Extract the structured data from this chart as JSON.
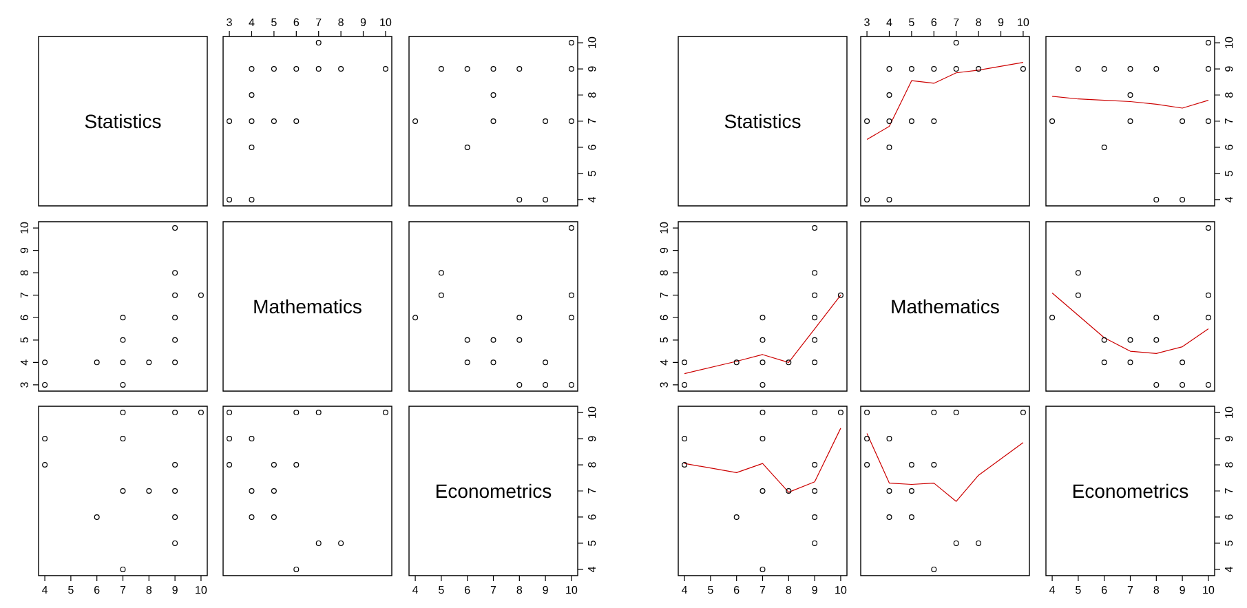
{
  "chart_data": [
    {
      "type": "other",
      "title": "Statistics"
    },
    {
      "type": "scatter",
      "x": [
        3,
        3,
        4,
        4,
        4,
        4,
        4,
        5,
        5,
        6,
        6,
        7,
        7,
        8,
        10
      ],
      "values": [
        7,
        4,
        9,
        8,
        7,
        6,
        4,
        9,
        7,
        9,
        7,
        10,
        9,
        9,
        9
      ],
      "color": "#000000",
      "marker": "circle",
      "xlim": [
        2.72,
        10.28
      ],
      "ylim": [
        3.76,
        10.24
      ],
      "xticks": [
        3,
        4,
        5,
        6,
        7,
        8,
        9,
        10
      ],
      "tick_labels": "x"
    },
    {
      "type": "scatter",
      "x": [
        4,
        5,
        6,
        6,
        7,
        7,
        7,
        8,
        8,
        9,
        9,
        10,
        10,
        10
      ],
      "values": [
        7,
        9,
        9,
        6,
        9,
        8,
        7,
        9,
        4,
        7,
        4,
        10,
        9,
        7
      ],
      "color": "#000000",
      "marker": "circle",
      "xlim": [
        3.76,
        10.24
      ],
      "ylim": [
        3.76,
        10.24
      ],
      "yticks": [
        4,
        5,
        6,
        7,
        8,
        9,
        10
      ],
      "tick_labels": "y"
    },
    {
      "type": "scatter",
      "x": [
        4,
        4,
        6,
        7,
        7,
        7,
        7,
        8,
        9,
        9,
        9,
        9,
        9,
        9,
        10
      ],
      "values": [
        4,
        3,
        4,
        6,
        5,
        4,
        3,
        4,
        10,
        8,
        7,
        6,
        5,
        4,
        7
      ],
      "color": "#000000",
      "marker": "circle",
      "xlim": [
        3.76,
        10.24
      ],
      "ylim": [
        2.72,
        10.28
      ],
      "yticks": [
        3,
        4,
        5,
        6,
        7,
        8,
        9,
        10
      ],
      "tick_labels": "y"
    },
    {
      "type": "other",
      "title": "Mathematics"
    },
    {
      "type": "scatter",
      "x": [
        4,
        5,
        5,
        6,
        6,
        7,
        7,
        8,
        8,
        8,
        9,
        9,
        10,
        10,
        10,
        10
      ],
      "values": [
        6,
        8,
        7,
        5,
        4,
        5,
        4,
        6,
        5,
        3,
        4,
        3,
        10,
        7,
        6,
        3
      ],
      "color": "#000000",
      "marker": "circle",
      "xlim": [
        3.76,
        10.24
      ],
      "ylim": [
        2.72,
        10.28
      ],
      "tick_labels": false
    },
    {
      "type": "scatter",
      "x": [
        4,
        4,
        6,
        7,
        7,
        7,
        7,
        8,
        9,
        9,
        9,
        9,
        9,
        10
      ],
      "values": [
        9,
        8,
        6,
        10,
        9,
        7,
        4,
        7,
        10,
        8,
        7,
        6,
        5,
        10
      ],
      "color": "#000000",
      "marker": "circle",
      "xlim": [
        3.76,
        10.24
      ],
      "ylim": [
        3.76,
        10.24
      ],
      "xticks": [
        4,
        5,
        6,
        7,
        8,
        9,
        10
      ],
      "tick_labels": "x"
    },
    {
      "type": "scatter",
      "x": [
        3,
        3,
        3,
        4,
        4,
        4,
        5,
        5,
        5,
        6,
        6,
        6,
        7,
        7,
        8,
        10
      ],
      "values": [
        10,
        9,
        8,
        9,
        7,
        6,
        8,
        7,
        6,
        10,
        8,
        4,
        10,
        5,
        5,
        10
      ],
      "color": "#000000",
      "marker": "circle",
      "xlim": [
        2.72,
        10.28
      ],
      "ylim": [
        3.76,
        10.24
      ],
      "tick_labels": false
    },
    {
      "type": "scatter",
      "title": "Econometrics",
      "xlim": [
        3.76,
        10.24
      ],
      "ylim": [
        3.76,
        10.24
      ],
      "xticks": [
        4,
        5,
        6,
        7,
        8,
        9,
        10
      ],
      "yticks": [
        4,
        5,
        6,
        7,
        8,
        9,
        10
      ]
    },
    {
      "type": "other",
      "title": "Statistics"
    },
    {
      "type": "scatter",
      "xlim": [
        2.72,
        10.28
      ],
      "ylim": [
        3.76,
        10.24
      ],
      "xticks": [
        3,
        4,
        5,
        6,
        7,
        8,
        9,
        10
      ],
      "tick_labels": "x",
      "series": [
        {
          "type": "scatter",
          "marker": "circle",
          "color": "#000000",
          "x": [
            3,
            3,
            4,
            4,
            4,
            4,
            4,
            5,
            5,
            6,
            6,
            7,
            7,
            8,
            10
          ],
          "values": [
            7,
            4,
            9,
            8,
            7,
            6,
            4,
            9,
            7,
            9,
            7,
            10,
            9,
            9,
            9
          ]
        },
        {
          "type": "line",
          "color": "#cc0000",
          "x": [
            3,
            4,
            5,
            6,
            7,
            8,
            10
          ],
          "values": [
            6.3,
            6.8,
            8.55,
            8.45,
            8.85,
            8.95,
            9.25
          ]
        }
      ]
    },
    {
      "type": "scatter",
      "xlim": [
        3.76,
        10.24
      ],
      "ylim": [
        3.76,
        10.24
      ],
      "yticks": [
        4,
        5,
        6,
        7,
        8,
        9,
        10
      ],
      "tick_labels": "y",
      "series": [
        {
          "type": "scatter",
          "marker": "circle",
          "color": "#000000",
          "x": [
            4,
            5,
            6,
            6,
            7,
            7,
            7,
            8,
            8,
            9,
            9,
            10,
            10,
            10
          ],
          "values": [
            7,
            9,
            9,
            6,
            9,
            8,
            7,
            9,
            4,
            7,
            4,
            10,
            9,
            7
          ]
        },
        {
          "type": "line",
          "color": "#cc0000",
          "x": [
            4,
            5,
            6,
            7,
            8,
            9,
            10
          ],
          "values": [
            7.95,
            7.85,
            7.8,
            7.75,
            7.65,
            7.5,
            7.8
          ]
        }
      ]
    },
    {
      "type": "scatter",
      "xlim": [
        3.76,
        10.24
      ],
      "ylim": [
        2.72,
        10.28
      ],
      "yticks": [
        3,
        4,
        5,
        6,
        7,
        8,
        9,
        10
      ],
      "tick_labels": "y",
      "series": [
        {
          "type": "scatter",
          "marker": "circle",
          "color": "#000000",
          "x": [
            4,
            4,
            6,
            7,
            7,
            7,
            7,
            8,
            9,
            9,
            9,
            9,
            9,
            9,
            10
          ],
          "values": [
            4,
            3,
            4,
            6,
            5,
            4,
            3,
            4,
            10,
            8,
            7,
            6,
            5,
            4,
            7
          ]
        },
        {
          "type": "line",
          "color": "#cc0000",
          "x": [
            4,
            6,
            7,
            8,
            9,
            10
          ],
          "values": [
            3.5,
            4.05,
            4.35,
            4.0,
            5.5,
            7.0
          ]
        }
      ]
    },
    {
      "type": "other",
      "title": "Mathematics"
    },
    {
      "type": "scatter",
      "xlim": [
        3.76,
        10.24
      ],
      "ylim": [
        2.72,
        10.28
      ],
      "tick_labels": false,
      "series": [
        {
          "type": "scatter",
          "marker": "circle",
          "color": "#000000",
          "x": [
            4,
            5,
            5,
            6,
            6,
            7,
            7,
            8,
            8,
            8,
            9,
            9,
            10,
            10,
            10,
            10
          ],
          "values": [
            6,
            8,
            7,
            5,
            4,
            5,
            4,
            6,
            5,
            3,
            4,
            3,
            10,
            7,
            6,
            3
          ]
        },
        {
          "type": "line",
          "color": "#cc0000",
          "x": [
            4,
            5,
            6,
            7,
            8,
            9,
            10
          ],
          "values": [
            7.1,
            6.1,
            5.1,
            4.5,
            4.4,
            4.7,
            5.5
          ]
        }
      ]
    },
    {
      "type": "scatter",
      "xlim": [
        3.76,
        10.24
      ],
      "ylim": [
        3.76,
        10.24
      ],
      "xticks": [
        4,
        5,
        6,
        7,
        8,
        9,
        10
      ],
      "tick_labels": "x",
      "series": [
        {
          "type": "scatter",
          "marker": "circle",
          "color": "#000000",
          "x": [
            4,
            4,
            6,
            7,
            7,
            7,
            7,
            8,
            9,
            9,
            9,
            9,
            9,
            10
          ],
          "values": [
            9,
            8,
            6,
            10,
            9,
            7,
            4,
            7,
            10,
            8,
            7,
            6,
            5,
            10
          ]
        },
        {
          "type": "line",
          "color": "#cc0000",
          "x": [
            4,
            6,
            7,
            8,
            9,
            10
          ],
          "values": [
            8.05,
            7.7,
            8.05,
            6.95,
            7.35,
            9.4
          ]
        }
      ]
    },
    {
      "type": "scatter",
      "xlim": [
        2.72,
        10.28
      ],
      "ylim": [
        3.76,
        10.24
      ],
      "tick_labels": false,
      "series": [
        {
          "type": "scatter",
          "marker": "circle",
          "color": "#000000",
          "x": [
            3,
            3,
            3,
            4,
            4,
            4,
            5,
            5,
            5,
            6,
            6,
            6,
            7,
            7,
            8,
            10
          ],
          "values": [
            10,
            9,
            8,
            9,
            7,
            6,
            8,
            7,
            6,
            10,
            8,
            4,
            10,
            5,
            5,
            10
          ]
        },
        {
          "type": "line",
          "color": "#cc0000",
          "x": [
            3,
            4,
            5,
            6,
            7,
            8,
            10
          ],
          "values": [
            9.2,
            7.3,
            7.25,
            7.3,
            6.6,
            7.6,
            8.85
          ]
        }
      ]
    },
    {
      "type": "scatter",
      "title": "Econometrics",
      "xlim": [
        3.76,
        10.24
      ],
      "ylim": [
        3.76,
        10.24
      ],
      "xticks": [
        4,
        5,
        6,
        7,
        8,
        9,
        10
      ],
      "yticks": [
        4,
        5,
        6,
        7,
        8,
        9,
        10
      ]
    }
  ]
}
